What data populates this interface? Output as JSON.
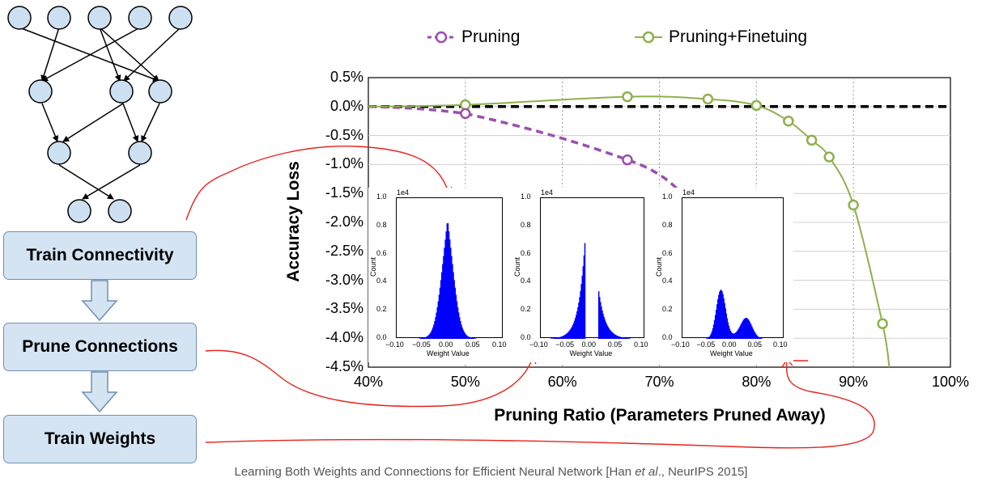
{
  "workflow": {
    "steps": [
      "Train Connectivity",
      "Prune Connections",
      "Train Weights"
    ]
  },
  "legend": {
    "pruning": "Pruning",
    "pruning_finetuning": "Pruning+Finetuing"
  },
  "colors": {
    "pruning": "#9b4eb0",
    "finetuning": "#8fb04c",
    "box_fill": "#d5e4f3",
    "node_fill": "#cde0f2",
    "annotation": "#e8231c",
    "histogram": "#0000ff"
  },
  "caption": {
    "before": "Learning Both Weights and Connections for Efficient Neural Network [Han ",
    "etal": "et al",
    "after": "., NeurIPS 2015]"
  },
  "chart_data": [
    {
      "type": "line",
      "xlabel": "Pruning Ratio (Parameters Pruned Away)",
      "ylabel": "Accuracy Loss",
      "x_ticks": [
        "40%",
        "50%",
        "60%",
        "70%",
        "80%",
        "90%",
        "100%"
      ],
      "y_ticks": [
        "0.5%",
        "0.0%",
        "-0.5%",
        "-1.0%",
        "-1.5%",
        "-2.0%",
        "-2.5%",
        "-3.0%",
        "-3.5%",
        "-4.0%",
        "-4.5%"
      ],
      "xlim": [
        40,
        100
      ],
      "ylim": [
        -4.5,
        0.5
      ],
      "grid": true,
      "legend_position": "top",
      "reference_line": {
        "y": 0.0,
        "style": "dashed"
      },
      "series": [
        {
          "name": "Pruning",
          "style": "dashed",
          "x": [
            50,
            66.7
          ],
          "y": [
            -0.12,
            -0.92
          ]
        },
        {
          "name": "Pruning+Finetuing",
          "style": "solid",
          "x": [
            50,
            66.7,
            75,
            80,
            83.3,
            85.7,
            87.5,
            90,
            93
          ],
          "y": [
            0.03,
            0.17,
            0.13,
            0.02,
            -0.25,
            -0.58,
            -0.87,
            -1.7,
            -3.75
          ]
        }
      ]
    },
    {
      "type": "bar",
      "xlabel": "Weight Value",
      "ylabel": "Count",
      "scale_label": "1e4",
      "x_ticks": [
        "−0.10",
        "−0.05",
        "0.00",
        "0.05",
        "0.10"
      ],
      "y_ticks": [
        "0.0",
        "0.2",
        "0.4",
        "0.6",
        "0.8",
        "1.0"
      ],
      "xlim": [
        -0.1,
        0.1
      ],
      "ylim": [
        0,
        1.0
      ],
      "distribution": "unimodal, peak 0.85 at -0.005"
    },
    {
      "type": "bar",
      "xlabel": "Weight Value",
      "ylabel": "Count",
      "scale_label": "1e4",
      "x_ticks": [
        "−0.10",
        "−0.05",
        "0.00",
        "0.05",
        "0.10"
      ],
      "y_ticks": [
        "0.0",
        "0.2",
        "0.4",
        "0.6",
        "0.8",
        "1.0"
      ],
      "xlim": [
        -0.1,
        0.1
      ],
      "ylim": [
        0,
        1.0
      ],
      "distribution": "pruned gap at [-0.015, 0.01], peaks 0.73 and 0.36"
    },
    {
      "type": "bar",
      "xlabel": "Weight Value",
      "ylabel": "Count",
      "scale_label": "1e4",
      "x_ticks": [
        "−0.10",
        "−0.05",
        "0.00",
        "0.05",
        "0.10"
      ],
      "y_ticks": [
        "0.0",
        "0.2",
        "0.4",
        "0.6",
        "0.8",
        "1.0"
      ],
      "xlim": [
        -0.1,
        0.1
      ],
      "ylim": [
        0,
        1.0
      ],
      "distribution": "bimodal, peaks 0.34 at -0.025 and 0.14 at 0.025"
    }
  ]
}
